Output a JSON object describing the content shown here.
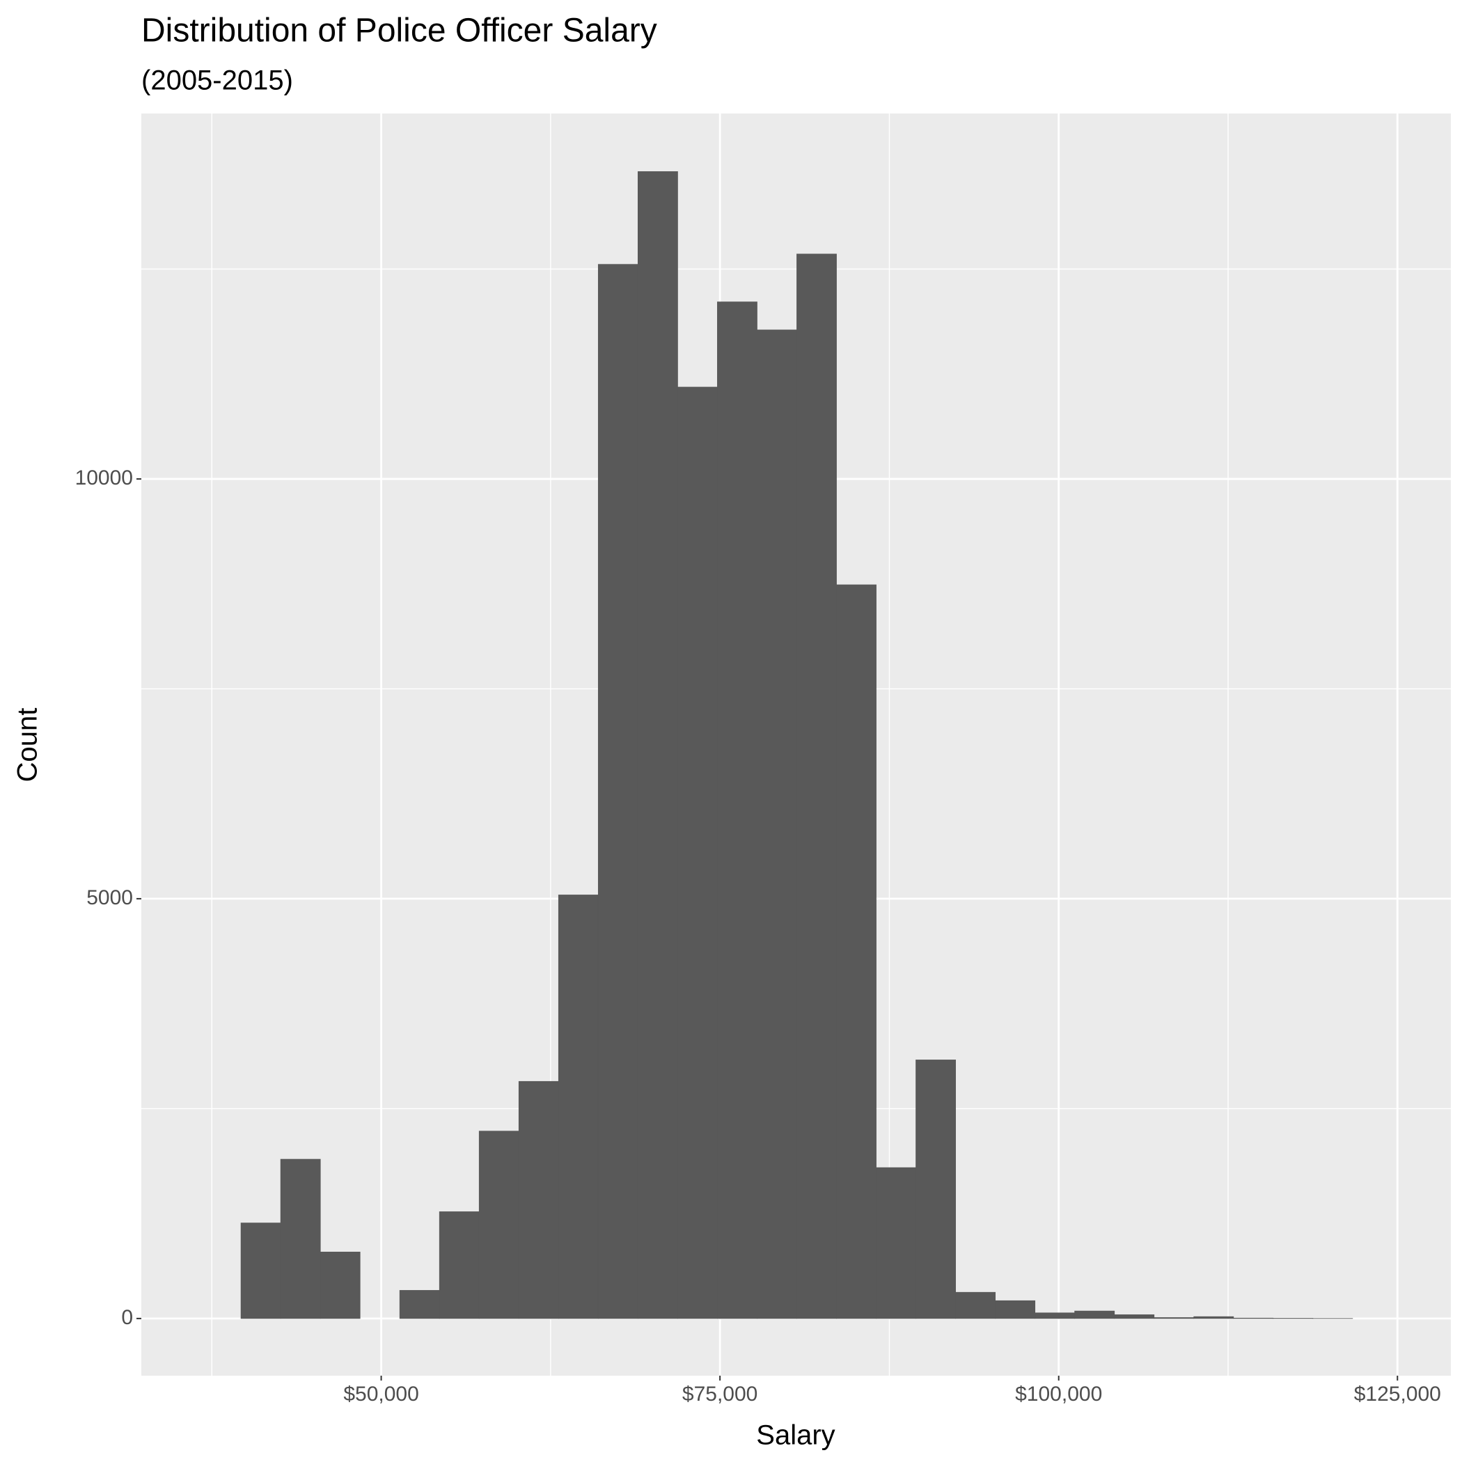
{
  "chart_data": {
    "type": "histogram",
    "title": "Distribution of Police Officer Salary",
    "subtitle": "(2005-2015)",
    "x_label": "Salary",
    "y_label": "Count",
    "bins": [
      36720,
      39650,
      42580,
      45510,
      48440,
      51370,
      54300,
      57230,
      60160,
      63090,
      66020,
      68950,
      71880,
      74810,
      77740,
      80670,
      83600,
      86530,
      89460,
      92390,
      95320,
      98250,
      101180,
      104110,
      107040,
      109970,
      112900,
      115830,
      118760,
      121690
    ],
    "values": [
      0,
      1138,
      1897,
      792,
      0,
      335,
      1272,
      2232,
      2824,
      5045,
      12556,
      13661,
      11094,
      12109,
      11775,
      12679,
      8739,
      1797,
      3080,
      312,
      212,
      67,
      89,
      45,
      11,
      22,
      5,
      3,
      1
    ],
    "color": "#595959",
    "xlim": [
      32296,
      128942
    ],
    "ylim": [
      -681,
      14353
    ],
    "xticks": [
      {
        "value": 50000,
        "label": "$50,000"
      },
      {
        "value": 75000,
        "label": "$75,000"
      },
      {
        "value": 100000,
        "label": "$100,000"
      },
      {
        "value": 125000,
        "label": "$125,000"
      }
    ],
    "yticks": [
      0,
      5000,
      10000
    ],
    "x_minor_breaks": [
      37500,
      62500,
      87500,
      112500
    ],
    "y_minor_breaks": [
      2500,
      7500,
      12500
    ],
    "grid": true,
    "panel_color": "#ebebeb"
  }
}
